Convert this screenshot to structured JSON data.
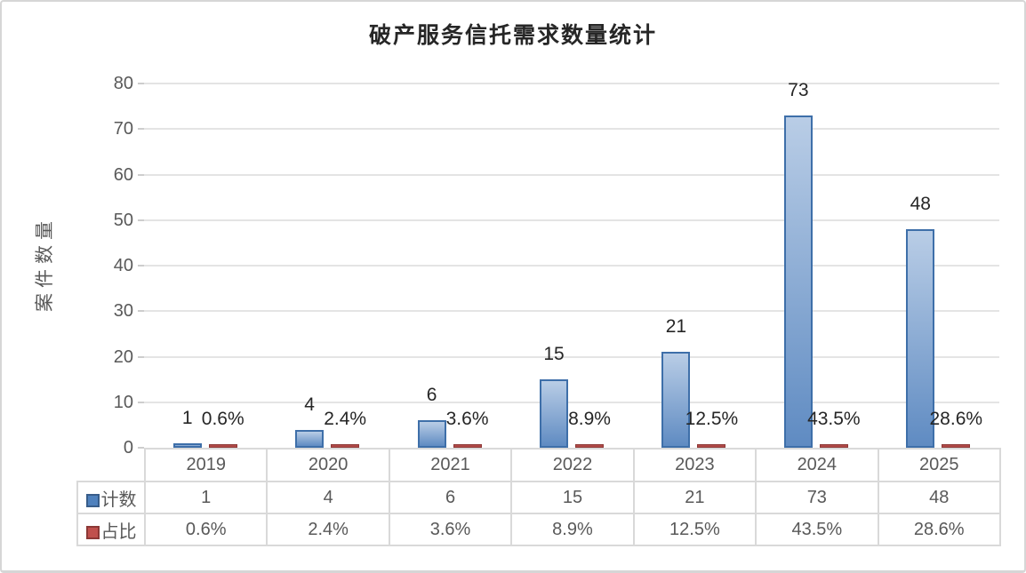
{
  "title": "破产服务信托需求数量统计",
  "chart_data": {
    "type": "bar",
    "title": "破产服务信托需求数量统计",
    "xlabel": "",
    "ylabel": "案件数量",
    "categories": [
      "2019",
      "2020",
      "2021",
      "2022",
      "2023",
      "2024",
      "2025"
    ],
    "series": [
      {
        "name": "计数",
        "values": [
          1,
          4,
          6,
          15,
          21,
          73,
          48
        ],
        "labels": [
          "1",
          "4",
          "6",
          "15",
          "21",
          "73",
          "48"
        ],
        "color": "#4f81bd"
      },
      {
        "name": "占比",
        "values": [
          0.6,
          2.4,
          3.6,
          8.9,
          12.5,
          43.5,
          28.6
        ],
        "labels": [
          "0.6%",
          "2.4%",
          "3.6%",
          "8.9%",
          "12.5%",
          "43.5%",
          "28.6%"
        ],
        "color": "#c0504d"
      }
    ],
    "ylim": [
      0,
      80
    ],
    "y_ticks": [
      "0",
      "10",
      "20",
      "30",
      "40",
      "50",
      "60",
      "70",
      "80"
    ],
    "grid": true,
    "legend_position": "data-table-left",
    "data_labels": true
  },
  "colors": {
    "bar_blue_fill_top": "#b9cde6",
    "bar_blue_fill_bottom": "#5f8bc2",
    "bar_blue_border": "#3e6fa9",
    "bar_red_fill": "#b04a48",
    "bar_red_border": "#8f3a38",
    "legend_blue": "#4f81bd",
    "legend_blue_border": "#385d8a",
    "legend_red": "#c0504d",
    "legend_red_border": "#8c3836",
    "gridline": "#e4e4e4",
    "text_gray": "#595959",
    "label_dark": "#262626"
  }
}
